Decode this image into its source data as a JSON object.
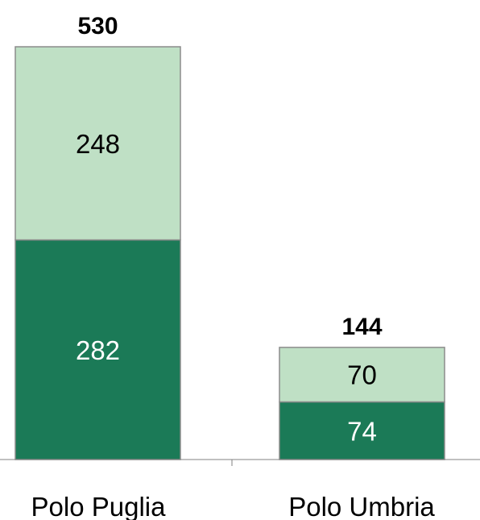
{
  "chart_data": {
    "type": "bar",
    "stacked": true,
    "categories": [
      "Polo Puglia",
      "Polo Umbria"
    ],
    "series": [
      {
        "values": [
          282,
          74
        ],
        "color": "#1b7a57",
        "label_color": "#ffffff"
      },
      {
        "values": [
          248,
          70
        ],
        "color": "#bfe0c5",
        "label_color": "#000000"
      }
    ],
    "totals": [
      "530",
      "144"
    ],
    "title": "",
    "xlabel": "",
    "ylabel": "",
    "ylim": [
      0,
      530
    ],
    "grid": false,
    "legend": "none"
  }
}
